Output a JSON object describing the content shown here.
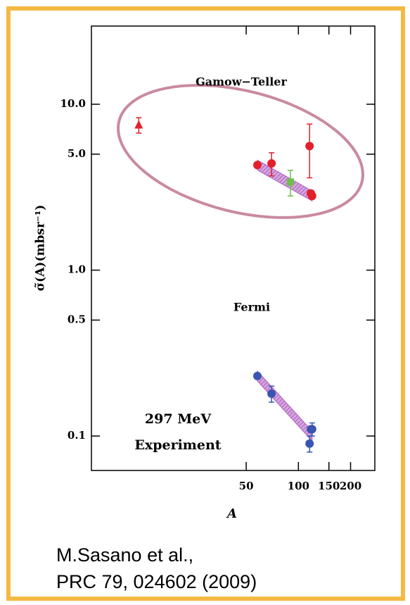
{
  "chart_data": {
    "type": "scatter",
    "xlabel": "A",
    "ylabel": "σ̃(A)(mbsr⁻¹)",
    "log_x": true,
    "log_y": true,
    "xlim": [
      6.4,
      276
    ],
    "ylim": [
      0.062,
      29.6
    ],
    "xticks": [
      50,
      100,
      150,
      200
    ],
    "yticks": [
      {
        "value": 0.1,
        "label": "0.1"
      },
      {
        "value": 0.5,
        "label": "0.5"
      },
      {
        "value": 1,
        "label": "1.0"
      },
      {
        "value": 5,
        "label": "5.0"
      },
      {
        "value": 10,
        "label": "10.0"
      }
    ],
    "series": [
      {
        "marker": "triangle",
        "color": "#e3202a",
        "x": [
          12
        ],
        "values": [
          7.5
        ],
        "errors": [
          0.8
        ]
      },
      {
        "marker": "circle",
        "color": "#e3202a",
        "x": [
          58,
          70,
          116,
          118,
          120
        ],
        "values": [
          4.3,
          4.4,
          5.6,
          2.9,
          2.8
        ],
        "errors": [
          0,
          0.7,
          2.0,
          0,
          0
        ]
      },
      {
        "marker": "square",
        "color": "#6cc04a",
        "x": [
          90
        ],
        "values": [
          3.4
        ],
        "errors": [
          0.6
        ]
      },
      {
        "marker": "circle",
        "color": "#3a55b0",
        "x": [
          58,
          70,
          116,
          118,
          120
        ],
        "values": [
          0.23,
          0.18,
          0.09,
          0.11,
          0.11
        ],
        "errors": [
          0,
          0.02,
          0.01,
          0,
          0.01
        ]
      }
    ],
    "bands": [
      {
        "color": "#b060c0",
        "x": [
          58,
          120
        ],
        "values": [
          4.3,
          2.8
        ]
      },
      {
        "color": "#b060c0",
        "x": [
          58,
          120
        ],
        "values": [
          0.23,
          0.1
        ]
      }
    ],
    "annotations": [
      "Gamow−Teller",
      "Fermi",
      "297 MeV",
      "Experiment"
    ],
    "citation": [
      "M.Sasano et al.,",
      "PRC 79, 024602 (2009)"
    ]
  }
}
